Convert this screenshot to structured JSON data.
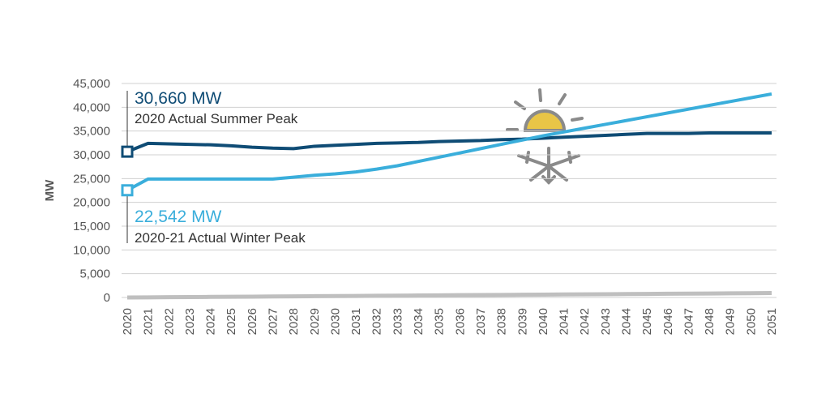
{
  "chart_data": {
    "type": "line",
    "y_label": "MW",
    "categories": [
      "2020",
      "2021",
      "2022",
      "2023",
      "2024",
      "2025",
      "2026",
      "2027",
      "2028",
      "2029",
      "2030",
      "2031",
      "2032",
      "2033",
      "2034",
      "2035",
      "2036",
      "2037",
      "2038",
      "2039",
      "2040",
      "2041",
      "2042",
      "2043",
      "2044",
      "2045",
      "2046",
      "2047",
      "2048",
      "2049",
      "2050",
      "2051"
    ],
    "series": [
      {
        "color": "#0f4c75",
        "values": [
          30660,
          32400,
          32300,
          32200,
          32100,
          31900,
          31600,
          31400,
          31300,
          31800,
          32000,
          32200,
          32400,
          32500,
          32600,
          32800,
          32900,
          33000,
          33200,
          33300,
          33500,
          33700,
          33900,
          34100,
          34300,
          34500,
          34500,
          34500,
          34600,
          34600,
          34600,
          34600
        ]
      },
      {
        "color": "#3aaedb",
        "values": [
          22542,
          24900,
          24900,
          24900,
          24900,
          24900,
          24900,
          24900,
          25300,
          25700,
          26000,
          26400,
          27000,
          27700,
          28600,
          29500,
          30400,
          31300,
          32200,
          33100,
          34000,
          34800,
          35600,
          36400,
          37200,
          38000,
          38800,
          39600,
          40400,
          41200,
          42000,
          42800
        ]
      },
      {
        "color": "#bfbfbf",
        "values": [
          0,
          30,
          60,
          90,
          120,
          150,
          180,
          210,
          240,
          270,
          300,
          330,
          360,
          390,
          420,
          450,
          480,
          510,
          540,
          570,
          600,
          630,
          660,
          690,
          720,
          750,
          780,
          810,
          840,
          870,
          900,
          930
        ]
      }
    ],
    "annotations": [
      {
        "value_text": "30,660 MW",
        "text": "2020 Actual Summer Peak"
      },
      {
        "value_text": "22,542 MW",
        "text": "2020-21 Actual Winter Peak"
      }
    ],
    "ylim": [
      0,
      45000
    ],
    "yticks": [
      0,
      {
        "value": 5000,
        "label": "5,000"
      },
      {
        "value": 10000,
        "label": "10,000"
      },
      {
        "value": 15000,
        "label": "15,000"
      },
      {
        "value": 20000,
        "label": "20,000"
      },
      {
        "value": 25000,
        "label": "25,000"
      },
      {
        "value": 30000,
        "label": "30,000"
      },
      {
        "value": 35000,
        "label": "35,000"
      },
      {
        "value": 40000,
        "label": "40,000"
      },
      {
        "value": 45000,
        "label": "45,000"
      }
    ],
    "grid": true
  }
}
